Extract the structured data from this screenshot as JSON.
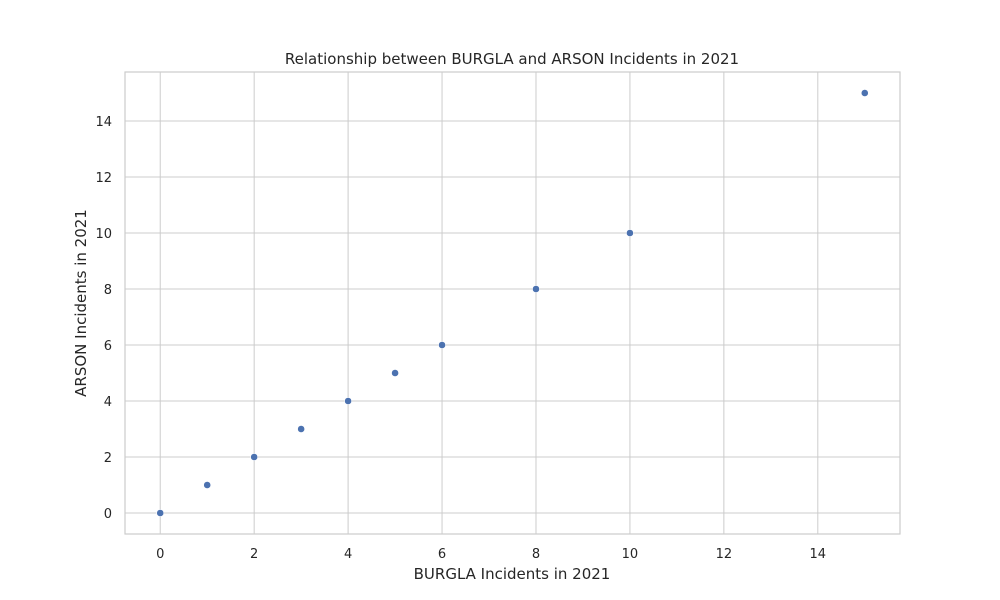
{
  "chart_data": {
    "type": "scatter",
    "title": "Relationship between BURGLA and ARSON Incidents in 2021",
    "xlabel": "BURGLA Incidents in 2021",
    "ylabel": "ARSON Incidents in 2021",
    "x": [
      0,
      1,
      2,
      3,
      4,
      5,
      6,
      8,
      10,
      15
    ],
    "y": [
      0,
      1,
      2,
      3,
      4,
      5,
      6,
      8,
      10,
      15
    ],
    "xlim": [
      -0.75,
      15.75
    ],
    "ylim": [
      -0.75,
      15.75
    ],
    "xticks": [
      0,
      2,
      4,
      6,
      8,
      10,
      12,
      14
    ],
    "yticks": [
      0,
      2,
      4,
      6,
      8,
      10,
      12,
      14
    ],
    "grid": true,
    "colors": {
      "point": "#4c72b0",
      "grid": "#cccccc",
      "text": "#262626"
    }
  }
}
